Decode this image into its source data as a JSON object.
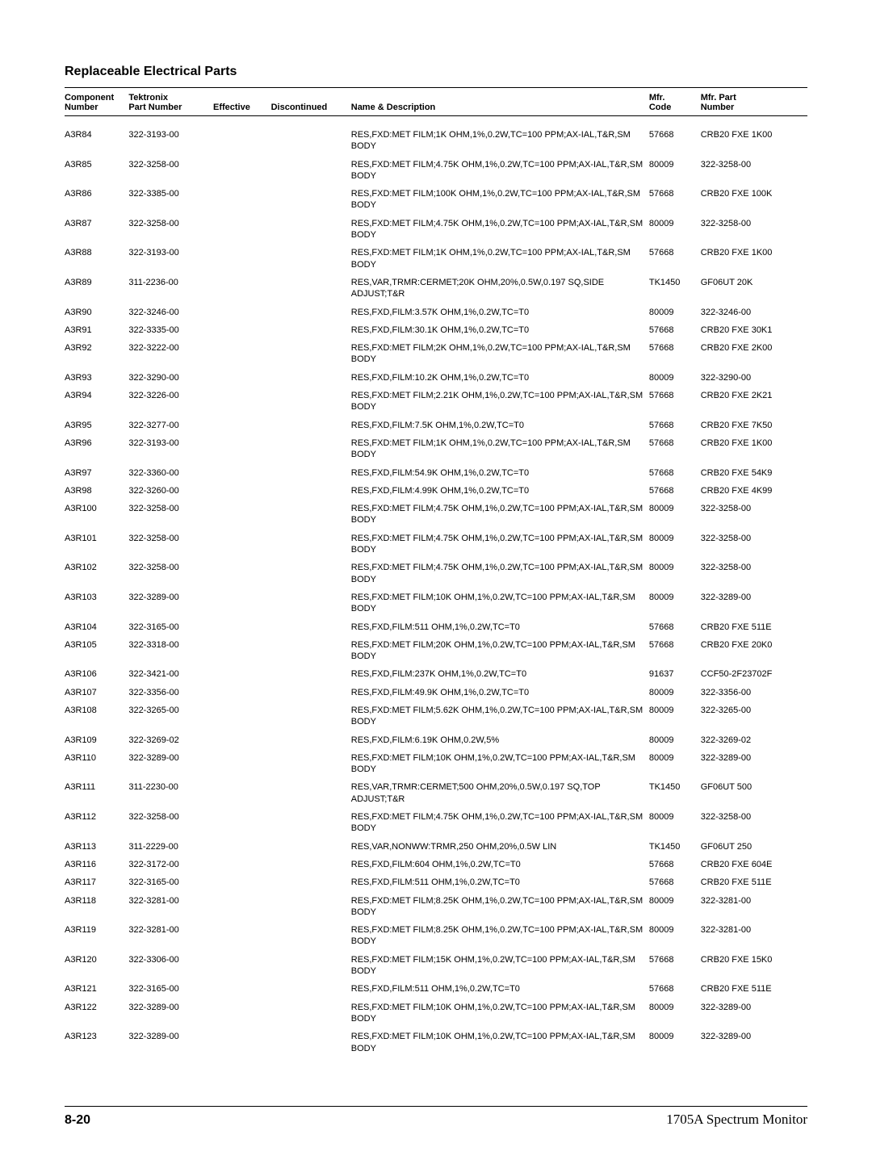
{
  "page_title": "Replaceable Electrical Parts",
  "table": {
    "headers": {
      "component": "Component\nNumber",
      "tektronix": "Tektronix\nPart Number",
      "effective": "Effective",
      "discontinued": "Discontinued",
      "desc": "Name & Description",
      "mfr": "Mfr.\nCode",
      "mfr_part": "Mfr. Part\nNumber"
    },
    "rows": [
      {
        "comp": "A3R84",
        "tek": "322-3193-00",
        "eff": "",
        "disc": "",
        "desc": "RES,FXD:MET FILM;1K OHM,1%,0.2W,TC=100 PPM;AX-IAL,T&R,SM BODY",
        "mfr": "57668",
        "mpn": "CRB20 FXE 1K00"
      },
      {
        "comp": "A3R85",
        "tek": "322-3258-00",
        "eff": "",
        "disc": "",
        "desc": "RES,FXD:MET FILM;4.75K OHM,1%,0.2W,TC=100 PPM;AX-IAL,T&R,SM BODY",
        "mfr": "80009",
        "mpn": "322-3258-00"
      },
      {
        "comp": "A3R86",
        "tek": "322-3385-00",
        "eff": "",
        "disc": "",
        "desc": "RES,FXD:MET FILM;100K OHM,1%,0.2W,TC=100 PPM;AX-IAL,T&R,SM BODY",
        "mfr": "57668",
        "mpn": "CRB20 FXE 100K"
      },
      {
        "comp": "A3R87",
        "tek": "322-3258-00",
        "eff": "",
        "disc": "",
        "desc": "RES,FXD:MET FILM;4.75K OHM,1%,0.2W,TC=100 PPM;AX-IAL,T&R,SM BODY",
        "mfr": "80009",
        "mpn": "322-3258-00"
      },
      {
        "comp": "A3R88",
        "tek": "322-3193-00",
        "eff": "",
        "disc": "",
        "desc": "RES,FXD:MET FILM;1K OHM,1%,0.2W,TC=100 PPM;AX-IAL,T&R,SM BODY",
        "mfr": "57668",
        "mpn": "CRB20 FXE 1K00"
      },
      {
        "comp": "A3R89",
        "tek": "311-2236-00",
        "eff": "",
        "disc": "",
        "desc": "RES,VAR,TRMR:CERMET;20K OHM,20%,0.5W,0.197 SQ,SIDE ADJUST;T&R",
        "mfr": "TK1450",
        "mpn": "GF06UT 20K"
      },
      {
        "comp": "A3R90",
        "tek": "322-3246-00",
        "eff": "",
        "disc": "",
        "desc": "RES,FXD,FILM:3.57K OHM,1%,0.2W,TC=T0",
        "mfr": "80009",
        "mpn": "322-3246-00"
      },
      {
        "comp": "A3R91",
        "tek": "322-3335-00",
        "eff": "",
        "disc": "",
        "desc": "RES,FXD,FILM:30.1K OHM,1%,0.2W,TC=T0",
        "mfr": "57668",
        "mpn": "CRB20 FXE 30K1"
      },
      {
        "comp": "A3R92",
        "tek": "322-3222-00",
        "eff": "",
        "disc": "",
        "desc": "RES,FXD:MET FILM;2K OHM,1%,0.2W,TC=100 PPM;AX-IAL,T&R,SM BODY",
        "mfr": "57668",
        "mpn": "CRB20 FXE 2K00"
      },
      {
        "comp": "A3R93",
        "tek": "322-3290-00",
        "eff": "",
        "disc": "",
        "desc": "RES,FXD,FILM:10.2K OHM,1%,0.2W,TC=T0",
        "mfr": "80009",
        "mpn": "322-3290-00"
      },
      {
        "comp": "A3R94",
        "tek": "322-3226-00",
        "eff": "",
        "disc": "",
        "desc": "RES,FXD:MET FILM;2.21K OHM,1%,0.2W,TC=100 PPM;AX-IAL,T&R,SM BODY",
        "mfr": "57668",
        "mpn": "CRB20 FXE 2K21"
      },
      {
        "comp": "A3R95",
        "tek": "322-3277-00",
        "eff": "",
        "disc": "",
        "desc": "RES,FXD,FILM:7.5K OHM,1%,0.2W,TC=T0",
        "mfr": "57668",
        "mpn": "CRB20 FXE 7K50"
      },
      {
        "comp": "A3R96",
        "tek": "322-3193-00",
        "eff": "",
        "disc": "",
        "desc": "RES,FXD:MET FILM;1K OHM,1%,0.2W,TC=100 PPM;AX-IAL,T&R,SM BODY",
        "mfr": "57668",
        "mpn": "CRB20 FXE 1K00"
      },
      {
        "comp": "A3R97",
        "tek": "322-3360-00",
        "eff": "",
        "disc": "",
        "desc": "RES,FXD,FILM:54.9K OHM,1%,0.2W,TC=T0",
        "mfr": "57668",
        "mpn": "CRB20 FXE 54K9"
      },
      {
        "comp": "A3R98",
        "tek": "322-3260-00",
        "eff": "",
        "disc": "",
        "desc": "RES,FXD,FILM:4.99K OHM,1%,0.2W,TC=T0",
        "mfr": "57668",
        "mpn": "CRB20 FXE 4K99"
      },
      {
        "comp": "A3R100",
        "tek": "322-3258-00",
        "eff": "",
        "disc": "",
        "desc": "RES,FXD:MET FILM;4.75K OHM,1%,0.2W,TC=100 PPM;AX-IAL,T&R,SM BODY",
        "mfr": "80009",
        "mpn": "322-3258-00"
      },
      {
        "comp": "A3R101",
        "tek": "322-3258-00",
        "eff": "",
        "disc": "",
        "desc": "RES,FXD:MET FILM;4.75K OHM,1%,0.2W,TC=100 PPM;AX-IAL,T&R,SM BODY",
        "mfr": "80009",
        "mpn": "322-3258-00"
      },
      {
        "comp": "A3R102",
        "tek": "322-3258-00",
        "eff": "",
        "disc": "",
        "desc": "RES,FXD:MET FILM;4.75K OHM,1%,0.2W,TC=100 PPM;AX-IAL,T&R,SM BODY",
        "mfr": "80009",
        "mpn": "322-3258-00"
      },
      {
        "comp": "A3R103",
        "tek": "322-3289-00",
        "eff": "",
        "disc": "",
        "desc": "RES,FXD:MET FILM;10K OHM,1%,0.2W,TC=100 PPM;AX-IAL,T&R,SM BODY",
        "mfr": "80009",
        "mpn": "322-3289-00"
      },
      {
        "comp": "A3R104",
        "tek": "322-3165-00",
        "eff": "",
        "disc": "",
        "desc": "RES,FXD,FILM:511 OHM,1%,0.2W,TC=T0",
        "mfr": "57668",
        "mpn": "CRB20 FXE 511E"
      },
      {
        "comp": "A3R105",
        "tek": "322-3318-00",
        "eff": "",
        "disc": "",
        "desc": "RES,FXD:MET FILM;20K OHM,1%,0.2W,TC=100 PPM;AX-IAL,T&R,SM BODY",
        "mfr": "57668",
        "mpn": "CRB20 FXE 20K0"
      },
      {
        "comp": "A3R106",
        "tek": "322-3421-00",
        "eff": "",
        "disc": "",
        "desc": "RES,FXD,FILM:237K OHM,1%,0.2W,TC=T0",
        "mfr": "91637",
        "mpn": "CCF50-2F23702F"
      },
      {
        "comp": "A3R107",
        "tek": "322-3356-00",
        "eff": "",
        "disc": "",
        "desc": "RES,FXD,FILM:49.9K OHM,1%,0.2W,TC=T0",
        "mfr": "80009",
        "mpn": "322-3356-00"
      },
      {
        "comp": "A3R108",
        "tek": "322-3265-00",
        "eff": "",
        "disc": "",
        "desc": "RES,FXD:MET FILM;5.62K OHM,1%,0.2W,TC=100 PPM;AX-IAL,T&R,SM BODY",
        "mfr": "80009",
        "mpn": "322-3265-00"
      },
      {
        "comp": "A3R109",
        "tek": "322-3269-02",
        "eff": "",
        "disc": "",
        "desc": "RES,FXD,FILM:6.19K OHM,0.2W,5%",
        "mfr": "80009",
        "mpn": "322-3269-02"
      },
      {
        "comp": "A3R110",
        "tek": "322-3289-00",
        "eff": "",
        "disc": "",
        "desc": "RES,FXD:MET FILM;10K OHM,1%,0.2W,TC=100 PPM;AX-IAL,T&R,SM BODY",
        "mfr": "80009",
        "mpn": "322-3289-00"
      },
      {
        "comp": "A3R111",
        "tek": "311-2230-00",
        "eff": "",
        "disc": "",
        "desc": "RES,VAR,TRMR:CERMET;500 OHM,20%,0.5W,0.197 SQ,TOP ADJUST;T&R",
        "mfr": "TK1450",
        "mpn": "GF06UT 500"
      },
      {
        "comp": "A3R112",
        "tek": "322-3258-00",
        "eff": "",
        "disc": "",
        "desc": "RES,FXD:MET FILM;4.75K OHM,1%,0.2W,TC=100 PPM;AX-IAL,T&R,SM BODY",
        "mfr": "80009",
        "mpn": "322-3258-00"
      },
      {
        "comp": "A3R113",
        "tek": "311-2229-00",
        "eff": "",
        "disc": "",
        "desc": "RES,VAR,NONWW:TRMR,250 OHM,20%,0.5W LIN",
        "mfr": "TK1450",
        "mpn": "GF06UT 250"
      },
      {
        "comp": "A3R116",
        "tek": "322-3172-00",
        "eff": "",
        "disc": "",
        "desc": "RES,FXD,FILM:604 OHM,1%,0.2W,TC=T0",
        "mfr": "57668",
        "mpn": "CRB20 FXE 604E"
      },
      {
        "comp": "A3R117",
        "tek": "322-3165-00",
        "eff": "",
        "disc": "",
        "desc": "RES,FXD,FILM:511 OHM,1%,0.2W,TC=T0",
        "mfr": "57668",
        "mpn": "CRB20 FXE 511E"
      },
      {
        "comp": "A3R118",
        "tek": "322-3281-00",
        "eff": "",
        "disc": "",
        "desc": "RES,FXD:MET FILM;8.25K OHM,1%,0.2W,TC=100 PPM;AX-IAL,T&R,SM BODY",
        "mfr": "80009",
        "mpn": "322-3281-00"
      },
      {
        "comp": "A3R119",
        "tek": "322-3281-00",
        "eff": "",
        "disc": "",
        "desc": "RES,FXD:MET FILM;8.25K OHM,1%,0.2W,TC=100 PPM;AX-IAL,T&R,SM BODY",
        "mfr": "80009",
        "mpn": "322-3281-00"
      },
      {
        "comp": "A3R120",
        "tek": "322-3306-00",
        "eff": "",
        "disc": "",
        "desc": "RES,FXD:MET FILM;15K OHM,1%,0.2W,TC=100 PPM;AX-IAL,T&R,SM BODY",
        "mfr": "57668",
        "mpn": "CRB20 FXE 15K0"
      },
      {
        "comp": "A3R121",
        "tek": "322-3165-00",
        "eff": "",
        "disc": "",
        "desc": "RES,FXD,FILM:511 OHM,1%,0.2W,TC=T0",
        "mfr": "57668",
        "mpn": "CRB20 FXE 511E"
      },
      {
        "comp": "A3R122",
        "tek": "322-3289-00",
        "eff": "",
        "disc": "",
        "desc": "RES,FXD:MET FILM;10K OHM,1%,0.2W,TC=100 PPM;AX-IAL,T&R,SM BODY",
        "mfr": "80009",
        "mpn": "322-3289-00"
      },
      {
        "comp": "A3R123",
        "tek": "322-3289-00",
        "eff": "",
        "disc": "",
        "desc": "RES,FXD:MET FILM;10K OHM,1%,0.2W,TC=100 PPM;AX-IAL,T&R,SM BODY",
        "mfr": "80009",
        "mpn": "322-3289-00"
      }
    ]
  },
  "footer": {
    "left": "8-20",
    "right": "1705A Spectrum Monitor"
  }
}
